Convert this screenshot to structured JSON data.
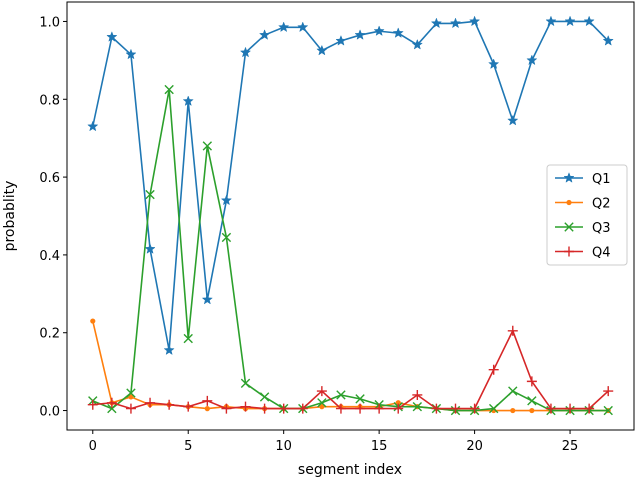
{
  "chart_data": {
    "type": "line",
    "xlabel": "segment index",
    "ylabel": "probablity",
    "xlim": [
      -1.35,
      28.35
    ],
    "ylim": [
      -0.05,
      1.05
    ],
    "xticks": [
      0,
      5,
      10,
      15,
      20,
      25
    ],
    "yticks": [
      0.0,
      0.2,
      0.4,
      0.6,
      0.8,
      1.0
    ],
    "xtick_labels": [
      "0",
      "5",
      "10",
      "15",
      "20",
      "25"
    ],
    "ytick_labels": [
      "0.0",
      "0.2",
      "0.4",
      "0.6",
      "0.8",
      "1.0"
    ],
    "grid": false,
    "legend_position": "center-right",
    "x": [
      0,
      1,
      2,
      3,
      4,
      5,
      6,
      7,
      8,
      9,
      10,
      11,
      12,
      13,
      14,
      15,
      16,
      17,
      18,
      19,
      20,
      21,
      22,
      23,
      24,
      25,
      26,
      27
    ],
    "series": [
      {
        "name": "Q1",
        "color": "#1f77b4",
        "marker": "star",
        "values": [
          0.73,
          0.96,
          0.915,
          0.415,
          0.155,
          0.795,
          0.285,
          0.54,
          0.92,
          0.965,
          0.985,
          0.985,
          0.925,
          0.95,
          0.965,
          0.975,
          0.97,
          0.94,
          0.995,
          0.995,
          1.0,
          0.89,
          0.745,
          0.9,
          1.0,
          1.0,
          1.0,
          0.95
        ]
      },
      {
        "name": "Q2",
        "color": "#ff7f0e",
        "marker": "dot",
        "values": [
          0.23,
          0.02,
          0.035,
          0.015,
          0.015,
          0.01,
          0.005,
          0.01,
          0.005,
          0.005,
          0.005,
          0.005,
          0.01,
          0.01,
          0.01,
          0.01,
          0.02,
          0.01,
          0.005,
          0.0,
          0.0,
          0.0,
          0.0,
          0.0,
          0.0,
          0.0,
          0.0,
          0.0
        ]
      },
      {
        "name": "Q3",
        "color": "#2ca02c",
        "marker": "x",
        "values": [
          0.025,
          0.005,
          0.045,
          0.555,
          0.825,
          0.185,
          0.68,
          0.445,
          0.07,
          0.035,
          0.005,
          0.005,
          0.02,
          0.04,
          0.03,
          0.015,
          0.01,
          0.01,
          0.005,
          0.0,
          0.0,
          0.005,
          0.05,
          0.025,
          0.0,
          0.0,
          0.0,
          0.0
        ]
      },
      {
        "name": "Q4",
        "color": "#d62728",
        "marker": "plus",
        "values": [
          0.015,
          0.02,
          0.005,
          0.02,
          0.015,
          0.01,
          0.025,
          0.005,
          0.01,
          0.005,
          0.005,
          0.005,
          0.05,
          0.005,
          0.005,
          0.005,
          0.005,
          0.04,
          0.005,
          0.005,
          0.005,
          0.105,
          0.205,
          0.075,
          0.005,
          0.005,
          0.005,
          0.05
        ]
      }
    ]
  }
}
